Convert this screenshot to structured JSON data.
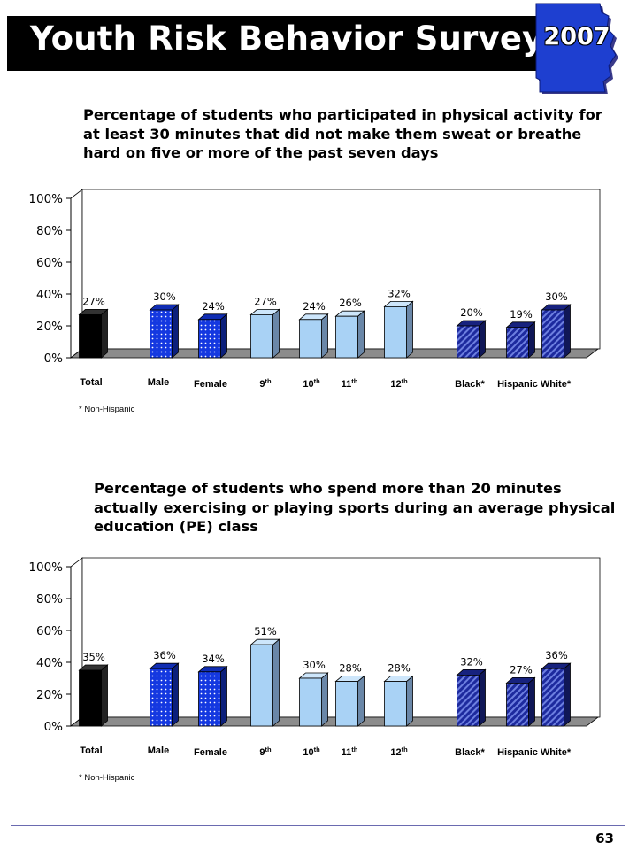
{
  "header": {
    "title": "Youth Risk Behavior Survey",
    "year": "2007"
  },
  "colors": {
    "total": "#000000",
    "gender": "#1438e0",
    "grade": "#a9d2f5",
    "race": "#1d2a9e",
    "banner": "#000000"
  },
  "chart_data": [
    {
      "type": "bar",
      "title": "Percentage of students who participated in physical activity for at least 30 minutes that did not make them sweat or breathe hard on five or more of the past seven days",
      "categories": [
        "Total",
        "Male",
        "Female",
        "9th",
        "10th",
        "11th",
        "12th",
        "Black*",
        "Hispanic",
        "White*"
      ],
      "values": [
        27,
        30,
        24,
        27,
        24,
        26,
        32,
        20,
        19,
        30
      ],
      "value_labels": [
        "27%",
        "30%",
        "24%",
        "27%",
        "24%",
        "26%",
        "32%",
        "20%",
        "19%",
        "30%"
      ],
      "ylim": [
        0,
        100
      ],
      "yticks": [
        "0%",
        "20%",
        "40%",
        "60%",
        "80%",
        "100%"
      ],
      "note": "* Non-Hispanic",
      "style": "3d-bars",
      "grid": false
    },
    {
      "type": "bar",
      "title": "Percentage of students who spend more than 20 minutes actually exercising or playing sports during an average physical education (PE) class",
      "categories": [
        "Total",
        "Male",
        "Female",
        "9th",
        "10th",
        "11th",
        "12th",
        "Black*",
        "Hispanic",
        "White*"
      ],
      "values": [
        35,
        36,
        34,
        51,
        30,
        28,
        28,
        32,
        27,
        36
      ],
      "value_labels": [
        "35%",
        "36%",
        "34%",
        "51%",
        "30%",
        "28%",
        "28%",
        "32%",
        "27%",
        "36%"
      ],
      "ylim": [
        0,
        100
      ],
      "yticks": [
        "0%",
        "20%",
        "40%",
        "60%",
        "80%",
        "100%"
      ],
      "note": "* Non-Hispanic",
      "style": "3d-bars",
      "grid": false
    }
  ],
  "page_number": "63"
}
